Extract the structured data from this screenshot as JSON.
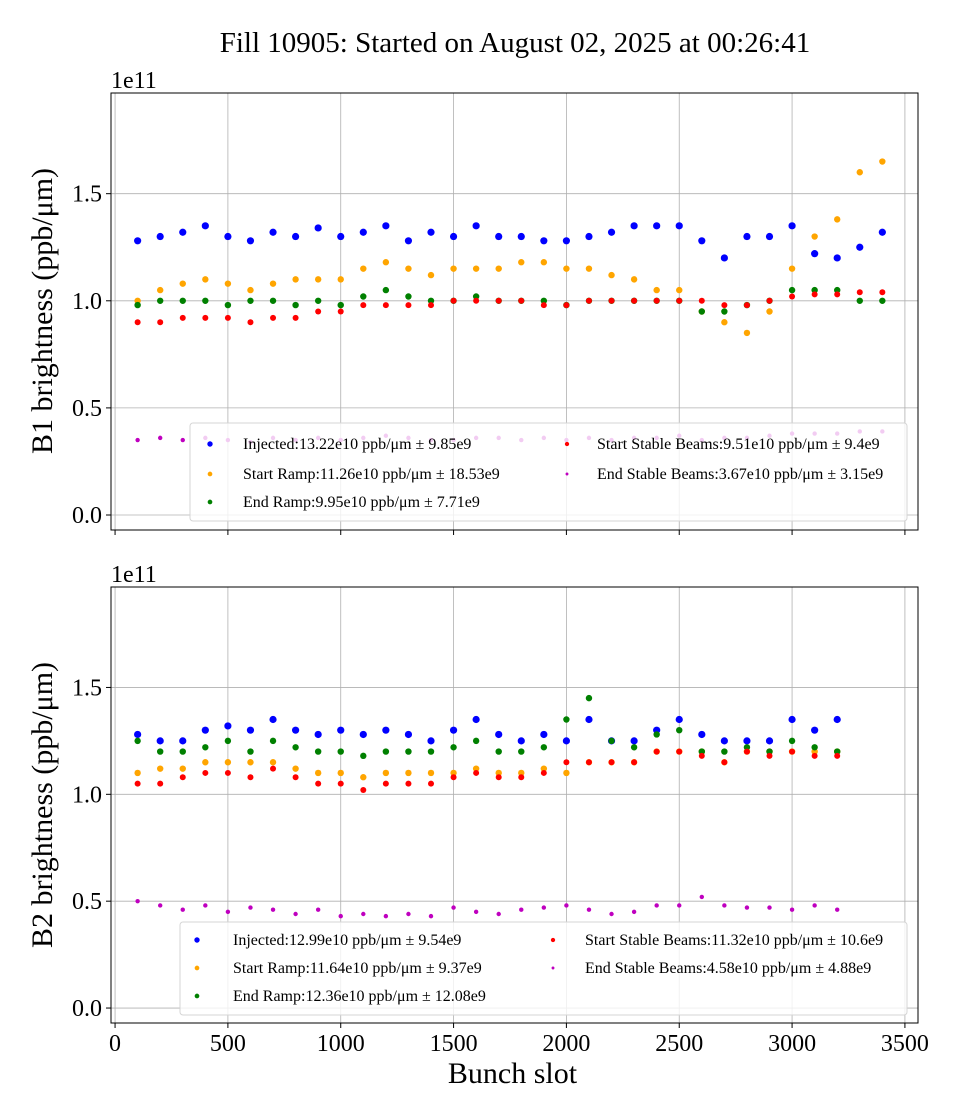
{
  "title": "Fill 10905: Started on August 02, 2025 at 00:26:41",
  "chart_data": [
    {
      "type": "scatter",
      "ylabel": "B1 brightness (ppb/μm)",
      "offset_label": "1e11",
      "xlabel": "",
      "xlim": [
        -18,
        3558
      ],
      "ylim": [
        -0.07,
        1.97
      ],
      "xticks": [
        0,
        500,
        1000,
        1500,
        2000,
        2500,
        3000,
        3500
      ],
      "xtick_labels_shown": false,
      "yticks": [
        "0.0",
        "0.5",
        "1.0",
        "1.5"
      ],
      "grid": true,
      "legend_placement": "lower-right",
      "x": [
        100,
        200,
        300,
        400,
        500,
        600,
        700,
        800,
        900,
        1000,
        1100,
        1200,
        1300,
        1400,
        1500,
        1600,
        1700,
        1800,
        1900,
        2000,
        2100,
        2200,
        2300,
        2400,
        2500,
        2600,
        2700,
        2800,
        2900,
        3000,
        3100,
        3200,
        3300,
        3400
      ],
      "series": [
        {
          "name": "Injected:13.22e10 ppb/μm ± 9.85e9",
          "color": "#0000ff",
          "values": [
            1.28,
            1.3,
            1.32,
            1.35,
            1.3,
            1.28,
            1.32,
            1.3,
            1.34,
            1.3,
            1.32,
            1.35,
            1.28,
            1.32,
            1.3,
            1.35,
            1.3,
            1.3,
            1.28,
            1.28,
            1.3,
            1.32,
            1.35,
            1.35,
            1.35,
            1.28,
            1.2,
            1.3,
            1.3,
            1.35,
            1.22,
            1.2,
            1.25,
            1.32
          ]
        },
        {
          "name": "Start Ramp:11.26e10 ppb/μm ± 18.53e9",
          "color": "#ffa500",
          "values": [
            1.0,
            1.05,
            1.08,
            1.1,
            1.08,
            1.05,
            1.08,
            1.1,
            1.1,
            1.1,
            1.15,
            1.18,
            1.15,
            1.12,
            1.15,
            1.15,
            1.15,
            1.18,
            1.18,
            1.15,
            1.15,
            1.12,
            1.1,
            1.05,
            1.05,
            0.95,
            0.9,
            0.85,
            0.95,
            1.15,
            1.3,
            1.38,
            1.6,
            1.65
          ]
        },
        {
          "name": "End Ramp:9.95e10 ppb/μm ± 7.71e9",
          "color": "#008000",
          "values": [
            0.98,
            1.0,
            1.0,
            1.0,
            0.98,
            1.0,
            1.0,
            0.98,
            1.0,
            0.98,
            1.02,
            1.05,
            1.02,
            1.0,
            1.0,
            1.02,
            1.0,
            1.0,
            1.0,
            0.98,
            1.0,
            1.0,
            1.0,
            1.0,
            1.0,
            0.95,
            0.95,
            0.98,
            1.0,
            1.05,
            1.05,
            1.05,
            1.0,
            1.0
          ]
        },
        {
          "name": "Start Stable Beams:9.51e10 ppb/μm ± 9.4e9",
          "color": "#ff0000",
          "values": [
            0.9,
            0.9,
            0.92,
            0.92,
            0.92,
            0.9,
            0.92,
            0.92,
            0.95,
            0.95,
            0.98,
            0.98,
            0.98,
            0.98,
            1.0,
            1.0,
            1.0,
            1.0,
            0.98,
            0.98,
            1.0,
            1.0,
            1.0,
            1.0,
            1.0,
            1.0,
            0.98,
            0.98,
            1.0,
            1.02,
            1.03,
            1.03,
            1.04,
            1.04
          ]
        },
        {
          "name": "End Stable Beams:3.67e10 ppb/μm ± 3.15e9",
          "color": "#bf00bf",
          "values": [
            0.35,
            0.36,
            0.35,
            0.36,
            0.35,
            0.34,
            0.36,
            0.35,
            0.36,
            0.35,
            0.36,
            0.37,
            0.36,
            0.35,
            0.35,
            0.36,
            0.36,
            0.35,
            0.36,
            0.35,
            0.36,
            0.35,
            0.36,
            0.36,
            0.37,
            0.35,
            0.36,
            0.36,
            0.37,
            0.38,
            0.38,
            0.38,
            0.39,
            0.39
          ]
        }
      ]
    },
    {
      "type": "scatter",
      "ylabel": "B2 brightness (ppb/μm)",
      "offset_label": "1e11",
      "xlabel": "Bunch slot",
      "xlim": [
        -18,
        3558
      ],
      "ylim": [
        -0.07,
        1.97
      ],
      "xticks": [
        "0",
        "500",
        "1000",
        "1500",
        "2000",
        "2500",
        "3000",
        "3500"
      ],
      "yticks": [
        "0.0",
        "0.5",
        "1.0",
        "1.5"
      ],
      "grid": true,
      "legend_placement": "lower-right",
      "x": [
        100,
        200,
        300,
        400,
        500,
        600,
        700,
        800,
        900,
        1000,
        1100,
        1200,
        1300,
        1400,
        1500,
        1600,
        1700,
        1800,
        1900,
        2000,
        2100,
        2200,
        2300,
        2400,
        2500,
        2600,
        2700,
        2800,
        2900,
        3000,
        3100,
        3200
      ],
      "series": [
        {
          "name": "Injected:12.99e10 ppb/μm ± 9.54e9",
          "color": "#0000ff",
          "values": [
            1.28,
            1.25,
            1.25,
            1.3,
            1.32,
            1.3,
            1.35,
            1.3,
            1.28,
            1.3,
            1.28,
            1.3,
            1.28,
            1.25,
            1.3,
            1.35,
            1.28,
            1.25,
            1.28,
            1.25,
            1.35,
            1.25,
            1.25,
            1.3,
            1.35,
            1.28,
            1.25,
            1.25,
            1.25,
            1.35,
            1.3,
            1.35
          ]
        },
        {
          "name": "Start Ramp:11.64e10 ppb/μm ± 9.37e9",
          "color": "#ffa500",
          "values": [
            1.1,
            1.12,
            1.12,
            1.15,
            1.15,
            1.15,
            1.15,
            1.12,
            1.1,
            1.1,
            1.08,
            1.1,
            1.1,
            1.1,
            1.1,
            1.12,
            1.1,
            1.1,
            1.12,
            1.1,
            1.15,
            1.15,
            1.15,
            1.2,
            1.2,
            1.2,
            1.15,
            1.2,
            1.2,
            1.2,
            1.2,
            1.2
          ]
        },
        {
          "name": "End Ramp:12.36e10 ppb/μm ± 12.08e9",
          "color": "#008000",
          "values": [
            1.25,
            1.2,
            1.2,
            1.22,
            1.25,
            1.2,
            1.25,
            1.22,
            1.2,
            1.2,
            1.18,
            1.2,
            1.2,
            1.2,
            1.22,
            1.25,
            1.2,
            1.2,
            1.22,
            1.35,
            1.45,
            1.25,
            1.22,
            1.28,
            1.3,
            1.2,
            1.2,
            1.22,
            1.2,
            1.25,
            1.22,
            1.2
          ]
        },
        {
          "name": "Start Stable Beams:11.32e10 ppb/μm ± 10.6e9",
          "color": "#ff0000",
          "values": [
            1.05,
            1.05,
            1.08,
            1.1,
            1.1,
            1.08,
            1.12,
            1.08,
            1.05,
            1.05,
            1.02,
            1.05,
            1.05,
            1.05,
            1.08,
            1.1,
            1.08,
            1.08,
            1.1,
            1.15,
            1.15,
            1.15,
            1.15,
            1.2,
            1.2,
            1.18,
            1.15,
            1.2,
            1.18,
            1.2,
            1.18,
            1.18
          ]
        },
        {
          "name": "End Stable Beams:4.58e10 ppb/μm ± 4.88e9",
          "color": "#bf00bf",
          "values": [
            0.5,
            0.48,
            0.46,
            0.48,
            0.45,
            0.47,
            0.46,
            0.44,
            0.46,
            0.43,
            0.44,
            0.43,
            0.44,
            0.43,
            0.47,
            0.45,
            0.44,
            0.46,
            0.47,
            0.48,
            0.46,
            0.44,
            0.45,
            0.48,
            0.48,
            0.52,
            0.48,
            0.47,
            0.47,
            0.46,
            0.48,
            0.46
          ]
        }
      ]
    }
  ]
}
